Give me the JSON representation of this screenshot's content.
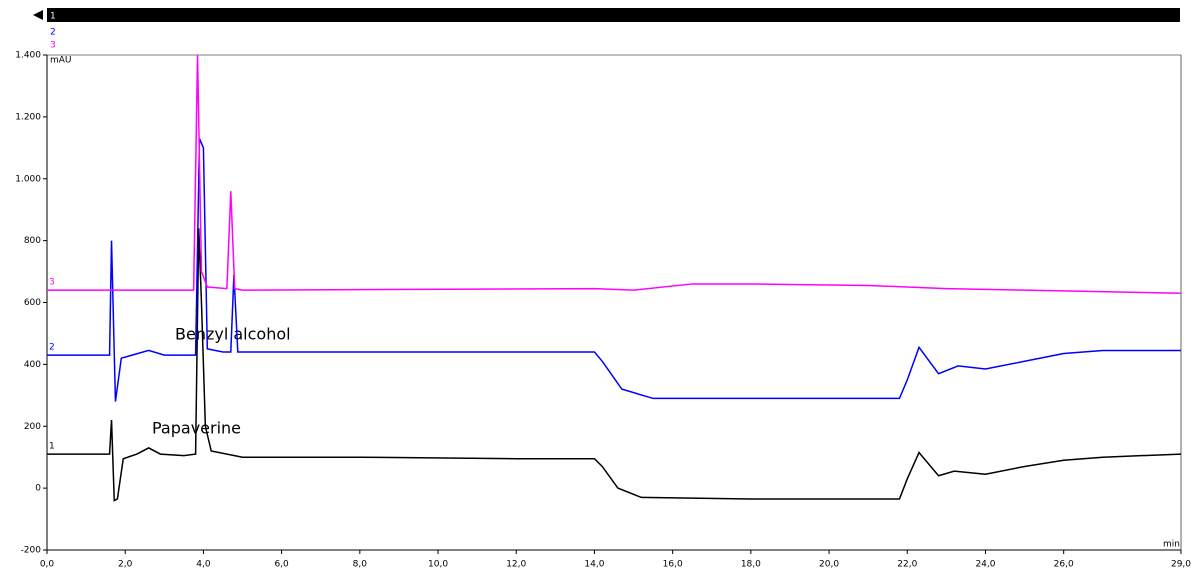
{
  "chart_data": {
    "type": "line",
    "x_axis_label": "min",
    "y_axis_label": "mAU",
    "xlim": [
      0,
      29
    ],
    "ylim": [
      -200,
      1400
    ],
    "xticks": [
      {
        "value": 0,
        "label": "0,0"
      },
      {
        "value": 2,
        "label": "2,0"
      },
      {
        "value": 4,
        "label": "4,0"
      },
      {
        "value": 6,
        "label": "6,0"
      },
      {
        "value": 8,
        "label": "8,0"
      },
      {
        "value": 10,
        "label": "10,0"
      },
      {
        "value": 12,
        "label": "12,0"
      },
      {
        "value": 14,
        "label": "14,0"
      },
      {
        "value": 16,
        "label": "16,0"
      },
      {
        "value": 18,
        "label": "18,0"
      },
      {
        "value": 20,
        "label": "20,0"
      },
      {
        "value": 22,
        "label": "22,0"
      },
      {
        "value": 24,
        "label": "24,0"
      },
      {
        "value": 26,
        "label": "26,0"
      },
      {
        "value": 29,
        "label": "29,0"
      }
    ],
    "yticks": [
      -200,
      0,
      200,
      400,
      600,
      800,
      {
        "value": 1000,
        "label": "1.000"
      },
      {
        "value": 1200,
        "label": "1.200"
      },
      {
        "value": 1400,
        "label": "1.400"
      }
    ],
    "annotations": [
      "Benzyl alcohol",
      "Papaverine"
    ],
    "series": [
      {
        "name": "1",
        "color": "#000000",
        "x": [
          0,
          1.6,
          1.65,
          1.72,
          1.8,
          1.95,
          2.3,
          2.6,
          2.9,
          3.5,
          3.8,
          3.88,
          3.95,
          4.05,
          4.2,
          5,
          8,
          12,
          14,
          14.2,
          14.6,
          15.2,
          18,
          21.8,
          22.0,
          22.3,
          22.8,
          23.2,
          24,
          25,
          26,
          27,
          29
        ],
        "values": [
          110,
          110,
          220,
          -40,
          -35,
          95,
          110,
          130,
          110,
          105,
          110,
          840,
          600,
          200,
          120,
          100,
          100,
          95,
          95,
          70,
          0,
          -30,
          -35,
          -35,
          30,
          115,
          40,
          55,
          45,
          70,
          90,
          100,
          110
        ]
      },
      {
        "name": "2",
        "color": "#0000ff",
        "x": [
          0,
          1.6,
          1.65,
          1.75,
          1.9,
          2.6,
          3.0,
          3.8,
          3.9,
          4.0,
          4.1,
          4.5,
          4.7,
          4.78,
          4.88,
          5,
          14,
          14.2,
          14.7,
          15.5,
          21.8,
          22.0,
          22.3,
          22.8,
          23.3,
          24,
          25,
          26,
          27,
          29
        ],
        "values": [
          430,
          430,
          800,
          280,
          420,
          445,
          430,
          430,
          1130,
          1100,
          450,
          440,
          440,
          690,
          440,
          440,
          440,
          410,
          320,
          290,
          290,
          350,
          455,
          370,
          395,
          385,
          410,
          435,
          445,
          445
        ]
      },
      {
        "name": "3",
        "color": "#ff00ff",
        "x": [
          0,
          3.75,
          3.85,
          3.95,
          4.1,
          4.6,
          4.7,
          4.8,
          5,
          14,
          15,
          16.5,
          18,
          21,
          23,
          25,
          29
        ],
        "values": [
          640,
          640,
          1400,
          700,
          650,
          645,
          960,
          645,
          640,
          645,
          640,
          660,
          660,
          655,
          645,
          640,
          630
        ]
      }
    ]
  }
}
